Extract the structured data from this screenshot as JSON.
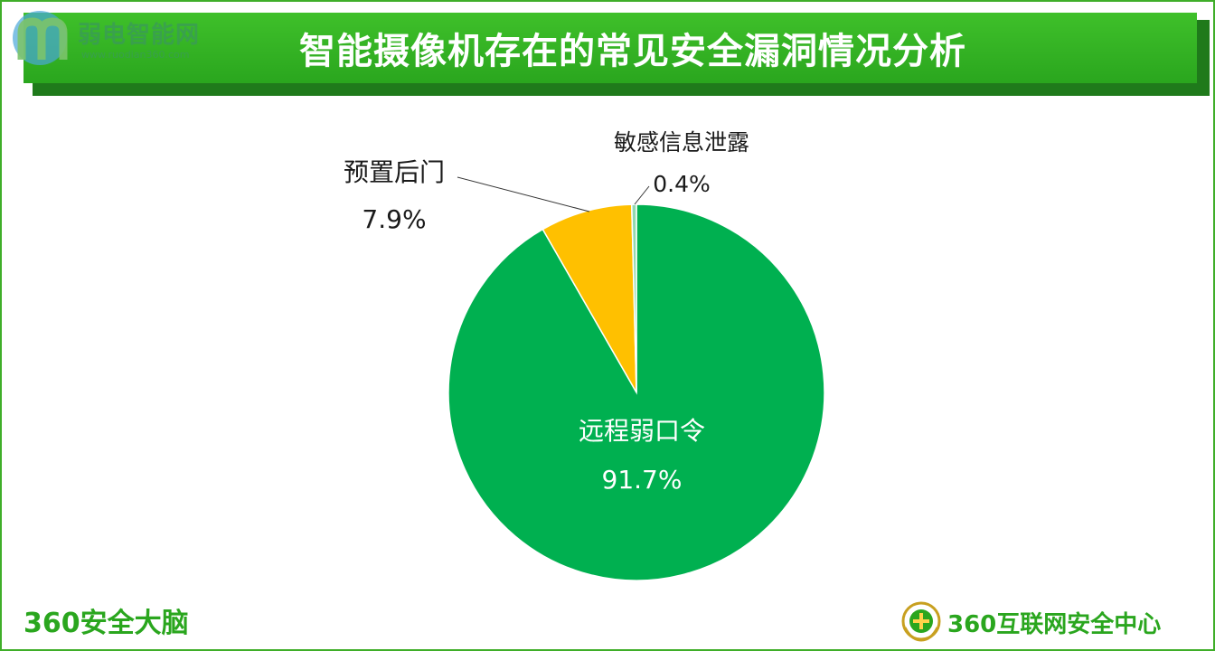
{
  "header": {
    "title": "智能摄像机存在的常见安全漏洞情况分析",
    "watermark_name": "弱电智能网",
    "watermark_url": "www.ruodian360.com"
  },
  "footer": {
    "left_brand": "360安全大脑",
    "right_brand": "360互联网安全中心"
  },
  "colors": {
    "accent": "#2aa61e",
    "banner_shadow": "#1f7a1b",
    "frame": "#3fae29"
  },
  "chart_data": {
    "type": "pie",
    "title": "",
    "categories": [
      "远程弱口令",
      "预置后门",
      "敏感信息泄露"
    ],
    "values": [
      91.7,
      7.9,
      0.4
    ],
    "value_labels": [
      "91.7%",
      "7.9%",
      "0.4%"
    ],
    "colors": [
      "#00b050",
      "#ffc000",
      "#92d8b0"
    ],
    "legend": "none"
  }
}
